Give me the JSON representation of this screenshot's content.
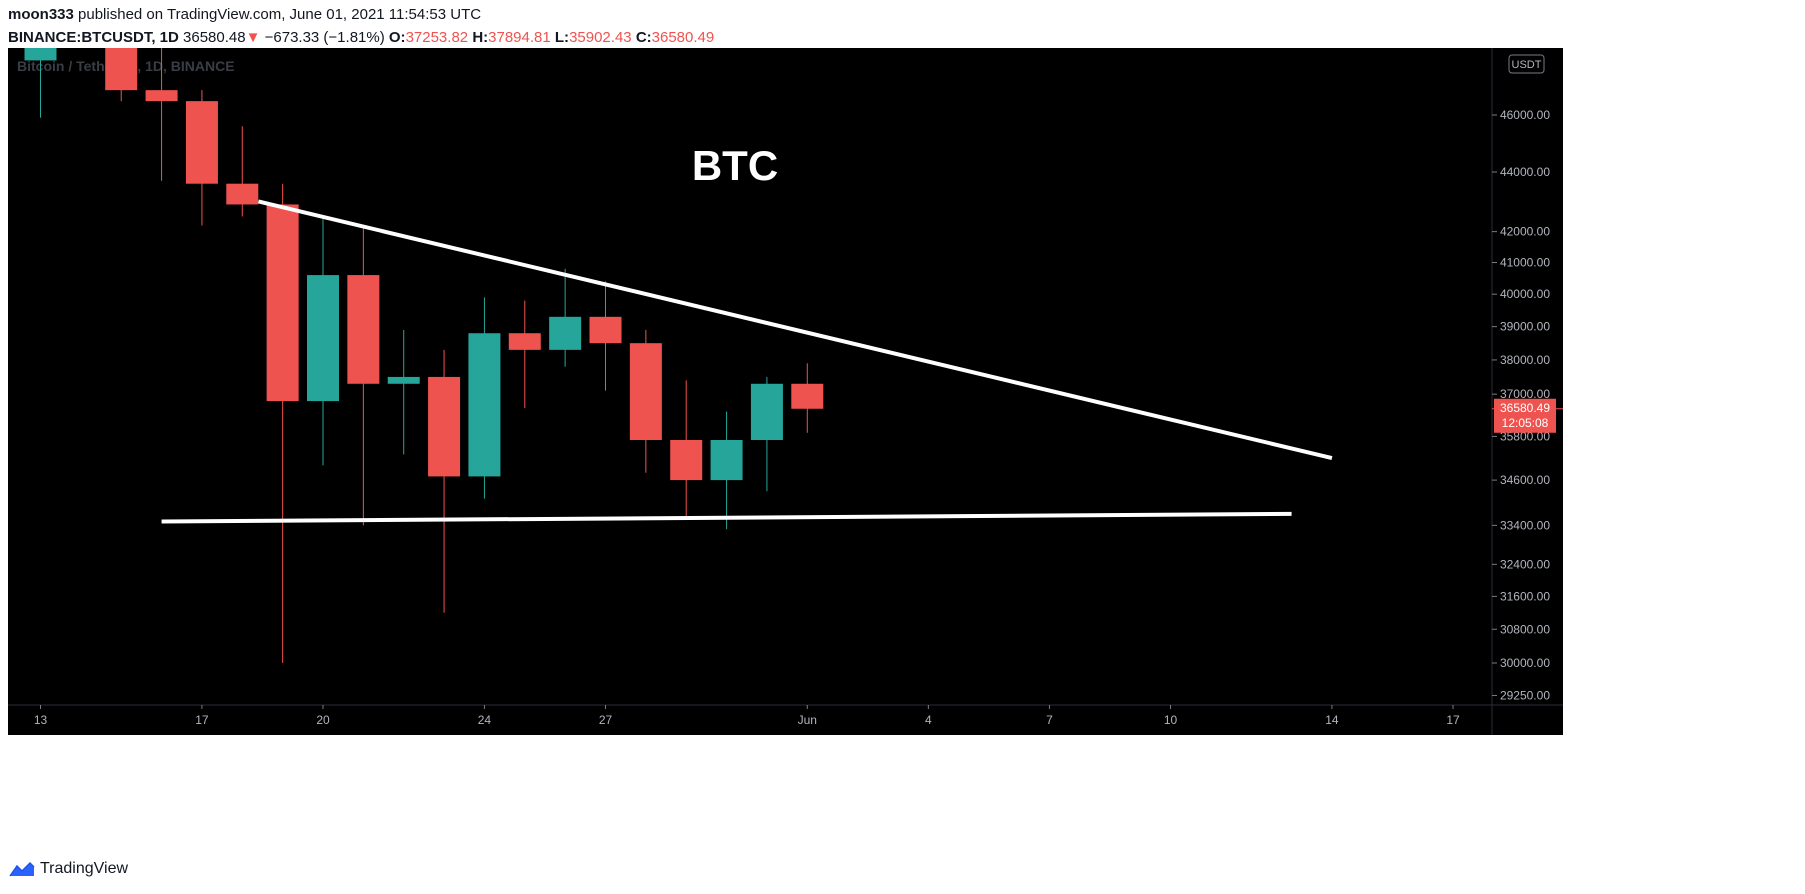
{
  "header": {
    "author": "moon333",
    "published_text": "published on TradingView.com, June 01, 2021 11:54:53 UTC",
    "symbol": "BINANCE:BTCUSDT, 1D",
    "last": "36580.48",
    "change": "−673.33 (−1.81%)",
    "o_label": "O:",
    "o": "37253.82",
    "h_label": "H:",
    "h": "37894.81",
    "l_label": "L:",
    "l": "35902.43",
    "c_label": "C:",
    "c": "36580.49",
    "down_icon": "triangle-down-icon"
  },
  "chart_data": {
    "type": "candlestick",
    "watermark": "Bitcoin / TetherUS, 1D, BINANCE",
    "annotation": "BTC",
    "currency": "USDT",
    "last_price_label": "36580.49",
    "countdown_label": "12:05:08",
    "y_scale": "log",
    "y_ticks": [
      "46000.00",
      "44000.00",
      "42000.00",
      "41000.00",
      "40000.00",
      "39000.00",
      "38000.00",
      "37000.00",
      "35800.00",
      "34600.00",
      "33400.00",
      "32400.00",
      "31600.00",
      "30800.00",
      "30000.00",
      "29250.00"
    ],
    "y_tick_values": [
      46000,
      44000,
      42000,
      41000,
      40000,
      39000,
      38000,
      37000,
      35800,
      34600,
      33400,
      32400,
      31600,
      30800,
      30000,
      29250
    ],
    "x_ticks": [
      {
        "label": "13",
        "day": 13
      },
      {
        "label": "17",
        "day": 17
      },
      {
        "label": "20",
        "day": 20
      },
      {
        "label": "24",
        "day": 24
      },
      {
        "label": "27",
        "day": 27
      },
      {
        "label": "Jun",
        "day": 32
      },
      {
        "label": "4",
        "day": 35
      },
      {
        "label": "7",
        "day": 38
      },
      {
        "label": "10",
        "day": 41
      },
      {
        "label": "14",
        "day": 45
      },
      {
        "label": "17",
        "day": 48
      }
    ],
    "candles": [
      {
        "day": 13,
        "o": 48000,
        "h": 49500,
        "l": 45900,
        "c": 48900
      },
      {
        "day": 15,
        "o": 50000,
        "h": 51500,
        "l": 46500,
        "c": 46900
      },
      {
        "day": 16,
        "o": 46900,
        "h": 48800,
        "l": 43700,
        "c": 46500
      },
      {
        "day": 17,
        "o": 46500,
        "h": 46900,
        "l": 42200,
        "c": 43600
      },
      {
        "day": 18,
        "o": 43600,
        "h": 45600,
        "l": 42500,
        "c": 42900
      },
      {
        "day": 19,
        "o": 42900,
        "h": 43600,
        "l": 30000,
        "c": 36800
      },
      {
        "day": 20,
        "o": 36800,
        "h": 42500,
        "l": 35000,
        "c": 40600
      },
      {
        "day": 21,
        "o": 40600,
        "h": 42200,
        "l": 33400,
        "c": 37300
      },
      {
        "day": 22,
        "o": 37300,
        "h": 38900,
        "l": 35300,
        "c": 37500
      },
      {
        "day": 23,
        "o": 37500,
        "h": 38300,
        "l": 31200,
        "c": 34700
      },
      {
        "day": 24,
        "o": 34700,
        "h": 39900,
        "l": 34100,
        "c": 38800
      },
      {
        "day": 25,
        "o": 38800,
        "h": 39800,
        "l": 36600,
        "c": 38300
      },
      {
        "day": 26,
        "o": 38300,
        "h": 40800,
        "l": 37800,
        "c": 39300
      },
      {
        "day": 27,
        "o": 39300,
        "h": 40400,
        "l": 37100,
        "c": 38500
      },
      {
        "day": 28,
        "o": 38500,
        "h": 38900,
        "l": 34800,
        "c": 35700
      },
      {
        "day": 29,
        "o": 35700,
        "h": 37400,
        "l": 33600,
        "c": 34600
      },
      {
        "day": 30,
        "o": 34600,
        "h": 36500,
        "l": 33300,
        "c": 35700
      },
      {
        "day": 31,
        "o": 35700,
        "h": 37500,
        "l": 34300,
        "c": 37300
      },
      {
        "day": 32,
        "o": 37300,
        "h": 37900,
        "l": 35900,
        "c": 36580
      }
    ],
    "trendlines": [
      {
        "name": "resistance",
        "x1": 18.4,
        "y1": 43000,
        "x2": 45,
        "y2": 35200
      },
      {
        "name": "support",
        "x1": 16,
        "y1": 33500,
        "x2": 44,
        "y2": 33700
      }
    ],
    "colors": {
      "up": "#26a69a",
      "down": "#ef5350",
      "background": "#000000",
      "line": "#ffffff"
    }
  },
  "footer": {
    "brand": "TradingView",
    "logo_icon": "tradingview-logo-icon"
  }
}
